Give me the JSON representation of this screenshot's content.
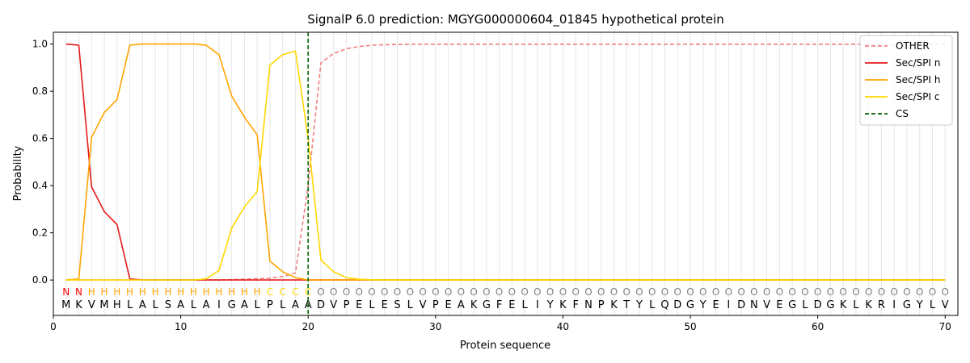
{
  "chart_data": {
    "type": "line",
    "title": "SignalP 6.0 prediction: MGYG000000604_01845 hypothetical protein",
    "xlabel": "Protein sequence",
    "ylabel": "Probability",
    "xlim": [
      0,
      71
    ],
    "ylim": [
      -0.15,
      1.05
    ],
    "x_ticks": [
      0,
      10,
      20,
      30,
      40,
      50,
      60,
      70
    ],
    "y_ticks": [
      0.0,
      0.2,
      0.4,
      0.6,
      0.8,
      1.0
    ],
    "x_tick_labels": [
      "0",
      "10",
      "20",
      "30",
      "40",
      "50",
      "60",
      "70"
    ],
    "y_tick_labels": [
      "0.0",
      "0.2",
      "0.4",
      "0.6",
      "0.8",
      "1.0"
    ],
    "grid": "vertical lines at each residue",
    "legend_position": "top-right",
    "sequence": [
      "M",
      "K",
      "V",
      "M",
      "H",
      "L",
      "A",
      "L",
      "S",
      "A",
      "L",
      "A",
      "I",
      "G",
      "A",
      "L",
      "P",
      "L",
      "A",
      "A",
      "D",
      "V",
      "P",
      "E",
      "L",
      "E",
      "S",
      "L",
      "V",
      "P",
      "E",
      "A",
      "K",
      "G",
      "F",
      "E",
      "L",
      "I",
      "Y",
      "K",
      "F",
      "N",
      "P",
      "K",
      "T",
      "Y",
      "L",
      "Q",
      "D",
      "G",
      "Y",
      "E",
      "I",
      "D",
      "N",
      "V",
      "E",
      "G",
      "L",
      "D",
      "G",
      "K",
      "L",
      "K",
      "R",
      "I",
      "G",
      "Y",
      "L",
      "V"
    ],
    "region_labels": [
      "N",
      "N",
      "H",
      "H",
      "H",
      "H",
      "H",
      "H",
      "H",
      "H",
      "H",
      "H",
      "H",
      "H",
      "H",
      "H",
      "C",
      "C",
      "C",
      "C",
      "O",
      "O",
      "O",
      "O",
      "O",
      "O",
      "O",
      "O",
      "O",
      "O",
      "O",
      "O",
      "O",
      "O",
      "O",
      "O",
      "O",
      "O",
      "O",
      "O",
      "O",
      "O",
      "O",
      "O",
      "O",
      "O",
      "O",
      "O",
      "O",
      "O",
      "O",
      "O",
      "O",
      "O",
      "O",
      "O",
      "O",
      "O",
      "O",
      "O",
      "O",
      "O",
      "O",
      "O",
      "O",
      "O",
      "O",
      "O",
      "O",
      "O"
    ],
    "region_colors": {
      "N": "#ff0000",
      "H": "#ffa500",
      "C": "#ffd700",
      "O": "#808080"
    },
    "series": [
      {
        "name": "OTHER",
        "color": "#f08080",
        "style": "dashed",
        "values": [
          0.0,
          0.0,
          0.0,
          0.0,
          0.0,
          0.0,
          0.0,
          0.0,
          0.0,
          0.0,
          0.0,
          0.0,
          0.0,
          0.002,
          0.004,
          0.006,
          0.008,
          0.015,
          0.03,
          0.4,
          0.92,
          0.96,
          0.98,
          0.99,
          0.995,
          0.997,
          0.998,
          0.999,
          0.999,
          0.999,
          0.999,
          0.999,
          0.999,
          0.999,
          0.999,
          0.999,
          0.999,
          0.999,
          0.999,
          0.999,
          0.999,
          0.999,
          0.999,
          0.999,
          0.999,
          0.999,
          0.999,
          0.999,
          0.999,
          0.999,
          0.999,
          0.999,
          0.999,
          0.999,
          0.999,
          0.999,
          0.999,
          0.999,
          0.999,
          0.999,
          0.999,
          0.999,
          0.999,
          0.999,
          0.999,
          0.999,
          0.999,
          0.999,
          0.999,
          0.999
        ]
      },
      {
        "name": "Sec/SPI n",
        "color": "#e41a1c",
        "style": "solid",
        "values": [
          1.0,
          0.995,
          0.395,
          0.29,
          0.235,
          0.005,
          0.0,
          0.0,
          0.0,
          0.0,
          0.0,
          0.0,
          0.0,
          0.0,
          0.0,
          0.0,
          0.0,
          0.0,
          0.0,
          0.0,
          0.0,
          0.0,
          0.0,
          0.0,
          0.0,
          0.0,
          0.0,
          0.0,
          0.0,
          0.0,
          0.0,
          0.0,
          0.0,
          0.0,
          0.0,
          0.0,
          0.0,
          0.0,
          0.0,
          0.0,
          0.0,
          0.0,
          0.0,
          0.0,
          0.0,
          0.0,
          0.0,
          0.0,
          0.0,
          0.0,
          0.0,
          0.0,
          0.0,
          0.0,
          0.0,
          0.0,
          0.0,
          0.0,
          0.0,
          0.0,
          0.0,
          0.0,
          0.0,
          0.0,
          0.0,
          0.0,
          0.0,
          0.0,
          0.0,
          0.0
        ]
      },
      {
        "name": "Sec/SPI h",
        "color": "#ffa500",
        "style": "solid",
        "values": [
          0.0,
          0.005,
          0.605,
          0.71,
          0.765,
          0.995,
          1.0,
          1.0,
          1.0,
          1.0,
          1.0,
          0.995,
          0.955,
          0.78,
          0.69,
          0.615,
          0.08,
          0.035,
          0.01,
          0.0,
          0.0,
          0.0,
          0.0,
          0.0,
          0.0,
          0.0,
          0.0,
          0.0,
          0.0,
          0.0,
          0.0,
          0.0,
          0.0,
          0.0,
          0.0,
          0.0,
          0.0,
          0.0,
          0.0,
          0.0,
          0.0,
          0.0,
          0.0,
          0.0,
          0.0,
          0.0,
          0.0,
          0.0,
          0.0,
          0.0,
          0.0,
          0.0,
          0.0,
          0.0,
          0.0,
          0.0,
          0.0,
          0.0,
          0.0,
          0.0,
          0.0,
          0.0,
          0.0,
          0.0,
          0.0,
          0.0,
          0.0,
          0.0,
          0.0,
          0.0
        ]
      },
      {
        "name": "Sec/SPI c",
        "color": "#ffd700",
        "style": "solid",
        "values": [
          0.0,
          0.0,
          0.0,
          0.0,
          0.0,
          0.0,
          0.0,
          0.0,
          0.0,
          0.0,
          0.0,
          0.005,
          0.04,
          0.22,
          0.31,
          0.375,
          0.91,
          0.955,
          0.97,
          0.6,
          0.085,
          0.035,
          0.01,
          0.003,
          0.001,
          0.0,
          0.0,
          0.0,
          0.0,
          0.0,
          0.0,
          0.0,
          0.0,
          0.0,
          0.0,
          0.0,
          0.0,
          0.0,
          0.0,
          0.0,
          0.0,
          0.0,
          0.0,
          0.0,
          0.0,
          0.0,
          0.0,
          0.0,
          0.0,
          0.0,
          0.0,
          0.0,
          0.0,
          0.0,
          0.0,
          0.0,
          0.0,
          0.0,
          0.0,
          0.0,
          0.0,
          0.0,
          0.0,
          0.0,
          0.0,
          0.0,
          0.0,
          0.0,
          0.0,
          0.0
        ]
      }
    ],
    "cs": {
      "name": "CS",
      "x": 20,
      "color": "#006400",
      "style": "dashed"
    }
  }
}
